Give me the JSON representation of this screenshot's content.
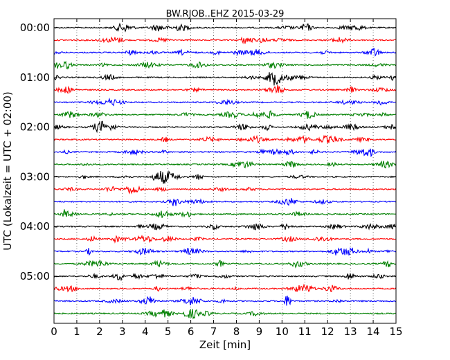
{
  "chart_data": {
    "type": "line",
    "title": "BW.RJOB..EHZ 2015-03-29",
    "xlabel": "Zeit  [min]",
    "ylabel": "UTC (Lokalzeit = UTC + 02:00)",
    "xlim": [
      0,
      15
    ],
    "x_ticks": [
      "0",
      "1",
      "2",
      "3",
      "4",
      "5",
      "6",
      "7",
      "8",
      "9",
      "10",
      "11",
      "12",
      "13",
      "14",
      "15"
    ],
    "y_tick_labels": [
      "00:00",
      "01:00",
      "02:00",
      "03:00",
      "04:00",
      "05:00"
    ],
    "trace_interval_minutes": 15,
    "trace_count": 24,
    "colors": [
      "#000000",
      "#ff0000",
      "#0000ff",
      "#008000"
    ],
    "grid": "vertical dotted"
  }
}
